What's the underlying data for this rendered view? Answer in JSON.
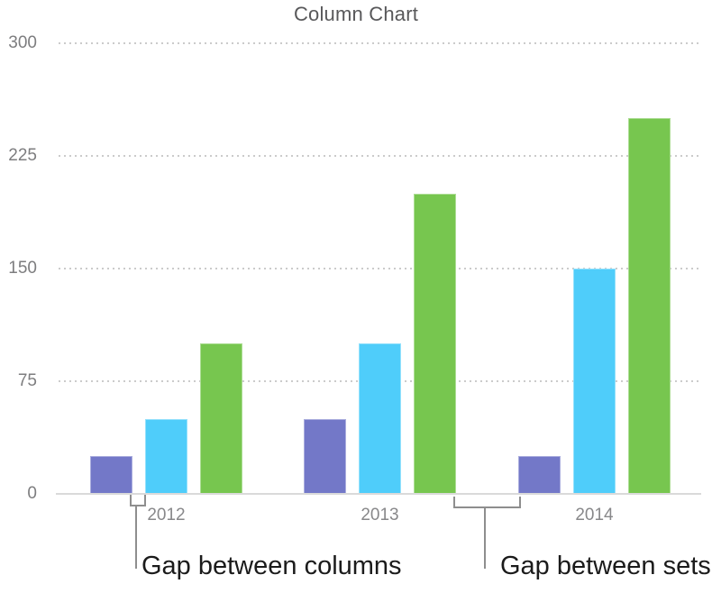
{
  "chart_data": {
    "type": "bar",
    "title": "Column Chart",
    "categories": [
      "2012",
      "2013",
      "2014"
    ],
    "series": [
      {
        "color": "#7378C8",
        "values": [
          25,
          50,
          25
        ]
      },
      {
        "color": "#4FCDFA",
        "values": [
          50,
          100,
          150
        ]
      },
      {
        "color": "#77C64F",
        "values": [
          100,
          200,
          250
        ]
      }
    ],
    "ylim": [
      0,
      300
    ],
    "yticks": [
      0,
      75,
      150,
      225,
      300
    ],
    "grid": "horizontal-dotted",
    "legend": "none",
    "xlabel": "",
    "ylabel": ""
  },
  "annotations": {
    "gap_columns": "Gap between columns",
    "gap_sets": "Gap between sets"
  },
  "colors": {
    "series_purple": "#7378C8",
    "series_cyan": "#4FCDFA",
    "series_green": "#77C64F",
    "axis_line": "#DADADA",
    "gridline": "#CBCBCB",
    "tick_text": "#7D7D7F",
    "title_text": "#58585A",
    "annotation_line": "#8E8E8E",
    "annotation_text": "#1B1B1B"
  }
}
